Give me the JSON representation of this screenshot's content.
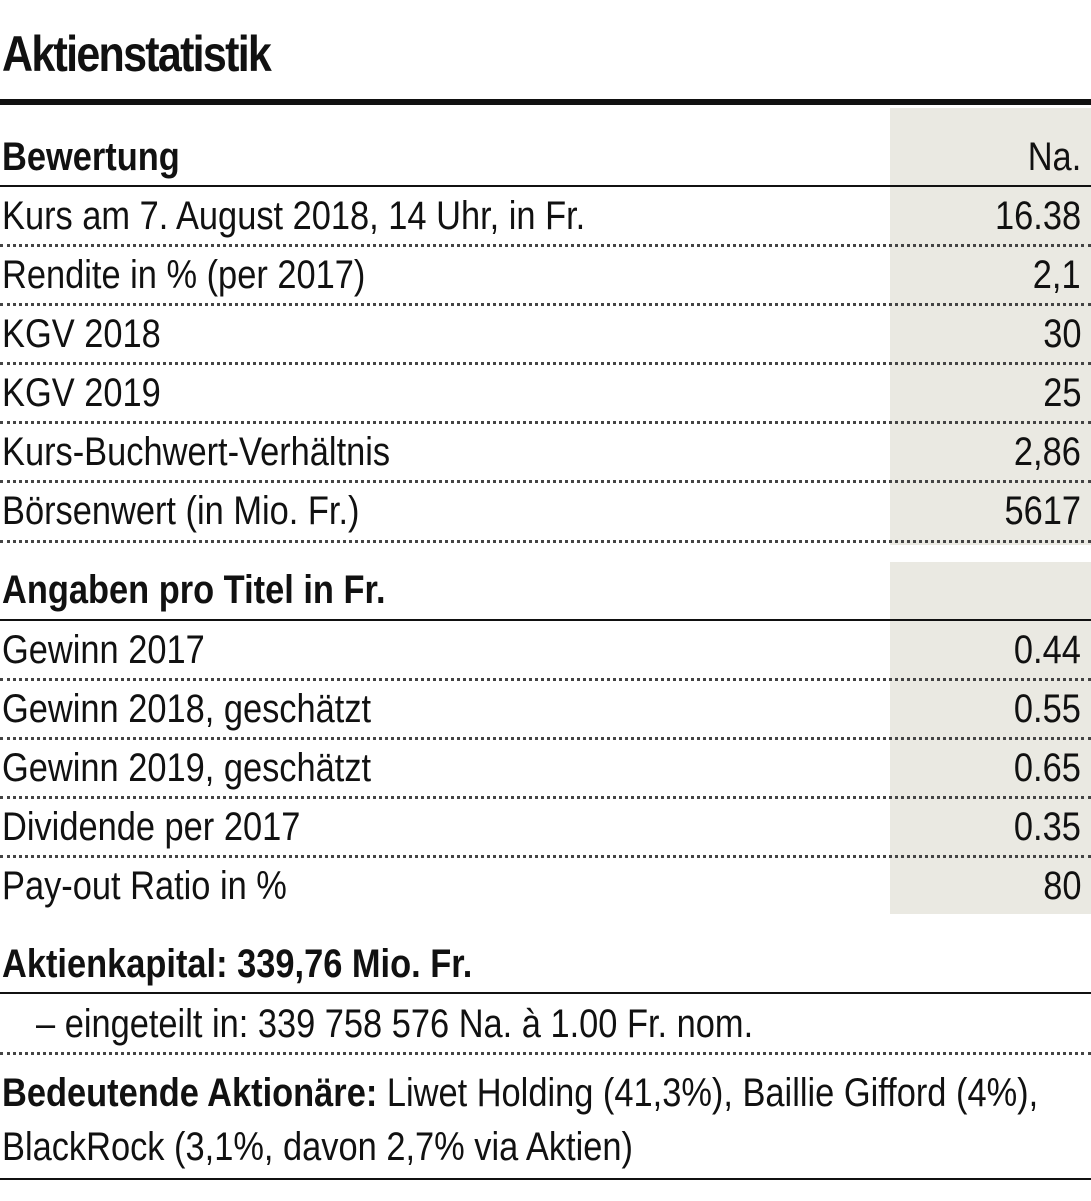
{
  "title": "Aktienstatistik",
  "bewertung": {
    "heading": "Bewertung",
    "column": "Na.",
    "rows": [
      {
        "label": "Kurs am 7. August 2018, 14 Uhr, in Fr.",
        "value": "16.38"
      },
      {
        "label": "Rendite in % (per 2017)",
        "value": "2,1"
      },
      {
        "label": "KGV 2018",
        "value": "30"
      },
      {
        "label": "KGV 2019",
        "value": "25"
      },
      {
        "label": "Kurs-Buchwert-Verhältnis",
        "value": "2,86"
      },
      {
        "label": "Börsenwert (in Mio. Fr.)",
        "value": "5617"
      }
    ]
  },
  "angaben": {
    "heading": "Angaben pro Titel in Fr.",
    "rows": [
      {
        "label": "Gewinn 2017",
        "value": "0.44"
      },
      {
        "label": "Gewinn 2018, geschätzt",
        "value": "0.55"
      },
      {
        "label": "Gewinn 2019, geschätzt",
        "value": "0.65"
      },
      {
        "label": "Dividende per 2017",
        "value": "0.35"
      },
      {
        "label": "Pay-out Ratio in %",
        "value": "80"
      }
    ]
  },
  "aktienkapital": {
    "heading": "Aktienkapital: 339,76 Mio. Fr.",
    "detail": "– eingeteilt in: 339 758 576 Na. à 1.00 Fr. nom."
  },
  "aktionaere": {
    "label": "Bedeutende Aktionäre:",
    "text": " Liwet Holding (41,3%), Baillie Gifford (4%), BlackRock (3,1%, davon 2,7% via Aktien)"
  },
  "colors": {
    "value_column_bg": "#eae9e2",
    "text": "#111111"
  }
}
